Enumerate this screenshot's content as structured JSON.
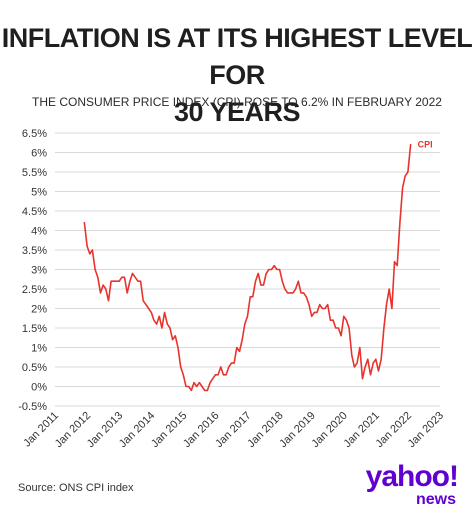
{
  "headline": {
    "line1": "INFLATION IS AT ITS HIGHEST LEVEL FOR",
    "line2": "30 YEARS"
  },
  "subtitle": "THE CONSUMER PRICE INDEX (CPI) ROSE TO 6.2% IN FEBRUARY 2022",
  "source": "Source: ONS CPI index",
  "logo": {
    "brand": "yahoo!",
    "sub": "news"
  },
  "colors": {
    "series": "#e8332c",
    "grid": "#d9d9d9",
    "text": "#333333",
    "logo": "#5f01d1"
  },
  "chart_data": {
    "type": "line",
    "title": "",
    "xlabel": "",
    "ylabel": "",
    "ylim": [
      -0.5,
      6.5
    ],
    "xlim": [
      "2011-01",
      "2023-01"
    ],
    "grid": "horizontal",
    "y_ticks": [
      -0.5,
      0,
      0.5,
      1,
      1.5,
      2,
      2.5,
      3,
      3.5,
      4,
      4.5,
      5,
      5.5,
      6,
      6.5
    ],
    "y_tick_labels": [
      "-0.5%",
      "0%",
      "0.5%",
      "1%",
      "1.5%",
      "2%",
      "2.5%",
      "3%",
      "3.5%",
      "4%",
      "4.5%",
      "5%",
      "5.5%",
      "6%",
      "6.5%"
    ],
    "x_ticks": [
      "2011-01",
      "2012-01",
      "2013-01",
      "2014-01",
      "2015-01",
      "2016-01",
      "2017-01",
      "2018-01",
      "2019-01",
      "2020-01",
      "2021-01",
      "2022-01",
      "2023-01"
    ],
    "x_tick_labels": [
      "Jan 2011",
      "Jan 2012",
      "Jan 2013",
      "Jan 2014",
      "Jan 2015",
      "Jan 2016",
      "Jan 2017",
      "Jan 2018",
      "Jan 2019",
      "Jan 2020",
      "Jan 2021",
      "Jan 2022",
      "Jan 2023"
    ],
    "series": [
      {
        "name": "CPI",
        "x": [
          "2011-12",
          "2012-01",
          "2012-02",
          "2012-03",
          "2012-04",
          "2012-05",
          "2012-06",
          "2012-07",
          "2012-08",
          "2012-09",
          "2012-10",
          "2012-11",
          "2012-12",
          "2013-01",
          "2013-02",
          "2013-03",
          "2013-04",
          "2013-05",
          "2013-06",
          "2013-07",
          "2013-08",
          "2013-09",
          "2013-10",
          "2013-11",
          "2013-12",
          "2014-01",
          "2014-02",
          "2014-03",
          "2014-04",
          "2014-05",
          "2014-06",
          "2014-07",
          "2014-08",
          "2014-09",
          "2014-10",
          "2014-11",
          "2014-12",
          "2015-01",
          "2015-02",
          "2015-03",
          "2015-04",
          "2015-05",
          "2015-06",
          "2015-07",
          "2015-08",
          "2015-09",
          "2015-10",
          "2015-11",
          "2015-12",
          "2016-01",
          "2016-02",
          "2016-03",
          "2016-04",
          "2016-05",
          "2016-06",
          "2016-07",
          "2016-08",
          "2016-09",
          "2016-10",
          "2016-11",
          "2016-12",
          "2017-01",
          "2017-02",
          "2017-03",
          "2017-04",
          "2017-05",
          "2017-06",
          "2017-07",
          "2017-08",
          "2017-09",
          "2017-10",
          "2017-11",
          "2017-12",
          "2018-01",
          "2018-02",
          "2018-03",
          "2018-04",
          "2018-05",
          "2018-06",
          "2018-07",
          "2018-08",
          "2018-09",
          "2018-10",
          "2018-11",
          "2018-12",
          "2019-01",
          "2019-02",
          "2019-03",
          "2019-04",
          "2019-05",
          "2019-06",
          "2019-07",
          "2019-08",
          "2019-09",
          "2019-10",
          "2019-11",
          "2019-12",
          "2020-01",
          "2020-02",
          "2020-03",
          "2020-04",
          "2020-05",
          "2020-06",
          "2020-07",
          "2020-08",
          "2020-09",
          "2020-10",
          "2020-11",
          "2020-12",
          "2021-01",
          "2021-02",
          "2021-03",
          "2021-04",
          "2021-05",
          "2021-06",
          "2021-07",
          "2021-08",
          "2021-09",
          "2021-10",
          "2021-11",
          "2021-12",
          "2022-01",
          "2022-02"
        ],
        "values": [
          4.2,
          3.6,
          3.4,
          3.5,
          3.0,
          2.8,
          2.4,
          2.6,
          2.5,
          2.2,
          2.7,
          2.7,
          2.7,
          2.7,
          2.8,
          2.8,
          2.4,
          2.7,
          2.9,
          2.8,
          2.7,
          2.7,
          2.2,
          2.1,
          2.0,
          1.9,
          1.7,
          1.6,
          1.8,
          1.5,
          1.9,
          1.6,
          1.5,
          1.2,
          1.3,
          1.0,
          0.5,
          0.3,
          0.0,
          0.0,
          -0.1,
          0.1,
          0.0,
          0.1,
          0.0,
          -0.1,
          -0.1,
          0.1,
          0.2,
          0.3,
          0.3,
          0.5,
          0.3,
          0.3,
          0.5,
          0.6,
          0.6,
          1.0,
          0.9,
          1.2,
          1.6,
          1.8,
          2.3,
          2.3,
          2.7,
          2.9,
          2.6,
          2.6,
          2.9,
          3.0,
          3.0,
          3.1,
          3.0,
          3.0,
          2.7,
          2.5,
          2.4,
          2.4,
          2.4,
          2.5,
          2.7,
          2.4,
          2.4,
          2.3,
          2.1,
          1.8,
          1.9,
          1.9,
          2.1,
          2.0,
          2.0,
          2.1,
          1.7,
          1.7,
          1.5,
          1.5,
          1.3,
          1.8,
          1.7,
          1.5,
          0.8,
          0.5,
          0.6,
          1.0,
          0.2,
          0.5,
          0.7,
          0.3,
          0.6,
          0.7,
          0.4,
          0.7,
          1.5,
          2.1,
          2.5,
          2.0,
          3.2,
          3.1,
          4.2,
          5.1,
          5.4,
          5.5,
          6.2
        ],
        "end_label": "CPI"
      }
    ]
  }
}
